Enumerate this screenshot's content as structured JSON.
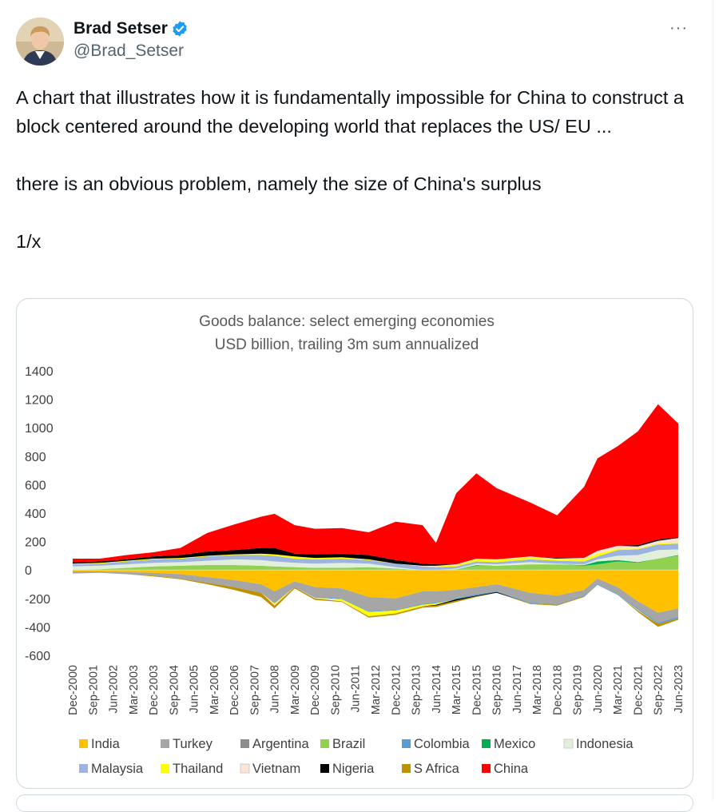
{
  "author": {
    "name": "Brad Setser",
    "handle": "@Brad_Setser",
    "verified_badge_color": "#1d9bf0",
    "avatar_icon": "person-photo"
  },
  "menu": {
    "more_label": "···"
  },
  "tweet": {
    "paragraphs": [
      "A chart that illustrates how it is fundamentally impossible for China to construct a block centered around the developing world that replaces the US/ EU ...",
      "there is an obvious problem, namely the size of China's surplus",
      "1/x"
    ]
  },
  "chart_data": {
    "type": "area",
    "stacked": true,
    "title": "Goods balance: select emerging economies",
    "subtitle": "USD billion, trailing 3m sum annualized",
    "xlabel": "",
    "ylabel": "",
    "ylim": [
      -600,
      1400
    ],
    "yticks": [
      1400,
      1200,
      1000,
      800,
      600,
      400,
      200,
      0,
      -200,
      -400,
      -600
    ],
    "xtick_labels": [
      "Dec-2000",
      "Sep-2001",
      "Jun-2002",
      "Mar-2003",
      "Dec-2003",
      "Sep-2004",
      "Jun-2005",
      "Mar-2006",
      "Dec-2006",
      "Sep-2007",
      "Jun-2008",
      "Mar-2009",
      "Dec-2009",
      "Sep-2010",
      "Jun-2011",
      "Mar-2012",
      "Dec-2012",
      "Sep-2013",
      "Jun-2014",
      "Mar-2015",
      "Dec-2015",
      "Sep-2016",
      "Jun-2017",
      "Mar-2018",
      "Dec-2018",
      "Sep-2019",
      "Jun-2020",
      "Mar-2021",
      "Dec-2021",
      "Sep-2022",
      "Jun-2023"
    ],
    "legend_position": "bottom",
    "legend": [
      {
        "name": "India",
        "color": "#FFC000"
      },
      {
        "name": "Turkey",
        "color": "#A6A6A6"
      },
      {
        "name": "Argentina",
        "color": "#8C8C8C"
      },
      {
        "name": "Brazil",
        "color": "#92D050"
      },
      {
        "name": "Colombia",
        "color": "#5B9BD5"
      },
      {
        "name": "Mexico",
        "color": "#00B050"
      },
      {
        "name": "Indonesia",
        "color": "#E2EFDA"
      },
      {
        "name": "Malaysia",
        "color": "#9DB3E0"
      },
      {
        "name": "Thailand",
        "color": "#FFFF00"
      },
      {
        "name": "Vietnam",
        "color": "#FCE4D6"
      },
      {
        "name": "Nigeria",
        "color": "#000000"
      },
      {
        "name": "S Africa",
        "color": "#BF9000"
      },
      {
        "name": "China",
        "color": "#FF0000"
      }
    ],
    "positive_stack": {
      "x": [
        "Dec-2000",
        "Dec-2001",
        "Dec-2002",
        "Dec-2003",
        "Dec-2004",
        "Dec-2005",
        "Dec-2006",
        "Dec-2007",
        "Jun-2008",
        "Mar-2009",
        "Dec-2009",
        "Dec-2010",
        "Dec-2011",
        "Dec-2012",
        "Dec-2013",
        "Jun-2014",
        "Mar-2015",
        "Dec-2015",
        "Sep-2016",
        "Dec-2017",
        "Dec-2018",
        "Dec-2019",
        "Jun-2020",
        "Mar-2021",
        "Dec-2021",
        "Sep-2022",
        "Jun-2023"
      ],
      "series": [
        {
          "name": "Brazil",
          "values": [
            0,
            5,
            15,
            25,
            30,
            35,
            35,
            30,
            25,
            20,
            15,
            15,
            20,
            10,
            0,
            0,
            5,
            30,
            30,
            40,
            40,
            30,
            40,
            60,
            50,
            80,
            100
          ]
        },
        {
          "name": "Mexico",
          "values": [
            0,
            0,
            0,
            0,
            0,
            0,
            0,
            0,
            0,
            0,
            0,
            0,
            0,
            0,
            0,
            0,
            0,
            5,
            0,
            0,
            0,
            5,
            20,
            10,
            5,
            0,
            5
          ]
        },
        {
          "name": "Indonesia",
          "values": [
            25,
            25,
            25,
            25,
            25,
            30,
            40,
            40,
            35,
            30,
            30,
            35,
            25,
            10,
            0,
            0,
            5,
            10,
            10,
            15,
            5,
            5,
            15,
            30,
            50,
            60,
            40
          ]
        },
        {
          "name": "Malaysia",
          "values": [
            15,
            15,
            20,
            25,
            25,
            30,
            30,
            35,
            40,
            30,
            30,
            30,
            25,
            25,
            25,
            20,
            15,
            15,
            15,
            20,
            20,
            20,
            20,
            40,
            40,
            40,
            40
          ]
        },
        {
          "name": "Thailand",
          "values": [
            5,
            5,
            5,
            5,
            5,
            5,
            5,
            10,
            10,
            15,
            10,
            10,
            5,
            0,
            0,
            5,
            10,
            15,
            15,
            15,
            10,
            15,
            20,
            10,
            5,
            5,
            10
          ]
        },
        {
          "name": "Vietnam",
          "values": [
            0,
            0,
            0,
            0,
            0,
            0,
            0,
            0,
            0,
            0,
            0,
            0,
            0,
            0,
            5,
            5,
            5,
            5,
            5,
            5,
            5,
            10,
            20,
            20,
            15,
            20,
            30
          ]
        },
        {
          "name": "Nigeria",
          "values": [
            10,
            10,
            10,
            15,
            20,
            30,
            30,
            40,
            45,
            20,
            25,
            25,
            30,
            25,
            15,
            10,
            0,
            0,
            0,
            0,
            5,
            0,
            0,
            0,
            10,
            10,
            5
          ]
        },
        {
          "name": "China",
          "values": [
            25,
            20,
            30,
            30,
            50,
            130,
            180,
            220,
            240,
            200,
            180,
            180,
            160,
            270,
            270,
            150,
            500,
            600,
            500,
            380,
            300,
            500,
            650,
            700,
            800,
            950,
            800
          ]
        }
      ]
    },
    "negative_stack": {
      "x": [
        "Dec-2000",
        "Dec-2001",
        "Dec-2002",
        "Dec-2003",
        "Dec-2004",
        "Dec-2005",
        "Dec-2006",
        "Dec-2007",
        "Jun-2008",
        "Mar-2009",
        "Dec-2009",
        "Dec-2010",
        "Dec-2011",
        "Dec-2012",
        "Dec-2013",
        "Jun-2014",
        "Mar-2015",
        "Dec-2015",
        "Sep-2016",
        "Dec-2017",
        "Dec-2018",
        "Dec-2019",
        "Jun-2020",
        "Mar-2021",
        "Dec-2021",
        "Sep-2022",
        "Jun-2023"
      ],
      "series": [
        {
          "name": "India",
          "values": [
            -10,
            -10,
            -15,
            -20,
            -30,
            -50,
            -70,
            -100,
            -150,
            -80,
            -120,
            -130,
            -190,
            -200,
            -150,
            -150,
            -140,
            -120,
            -100,
            -160,
            -180,
            -140,
            -60,
            -120,
            -220,
            -300,
            -270
          ]
        },
        {
          "name": "Turkey",
          "values": [
            -15,
            -10,
            -15,
            -20,
            -30,
            -40,
            -50,
            -60,
            -80,
            -40,
            -70,
            -70,
            -100,
            -80,
            -90,
            -80,
            -60,
            -50,
            -50,
            -70,
            -60,
            -40,
            -40,
            -50,
            -50,
            -70,
            -60
          ]
        },
        {
          "name": "Colombia",
          "values": [
            0,
            0,
            0,
            0,
            0,
            0,
            0,
            0,
            -5,
            0,
            -5,
            -5,
            -5,
            -5,
            -5,
            -5,
            -5,
            -10,
            -5,
            -5,
            -5,
            -5,
            -5,
            -5,
            -10,
            -10,
            -10
          ]
        },
        {
          "name": "Thailand",
          "values": [
            0,
            0,
            0,
            0,
            0,
            0,
            0,
            0,
            -10,
            0,
            0,
            -10,
            -30,
            -20,
            -10,
            -10,
            0,
            0,
            0,
            0,
            0,
            0,
            0,
            0,
            0,
            0,
            0
          ]
        },
        {
          "name": "Vietnam",
          "values": [
            0,
            0,
            0,
            0,
            0,
            0,
            0,
            0,
            -5,
            0,
            -5,
            -5,
            0,
            0,
            0,
            0,
            0,
            0,
            0,
            0,
            0,
            0,
            0,
            0,
            -5,
            0,
            0
          ]
        },
        {
          "name": "Nigeria",
          "values": [
            0,
            0,
            0,
            0,
            0,
            0,
            0,
            0,
            0,
            0,
            0,
            0,
            0,
            0,
            0,
            -5,
            -10,
            -5,
            -5,
            0,
            0,
            0,
            0,
            0,
            0,
            0,
            0
          ]
        },
        {
          "name": "S Africa",
          "values": [
            0,
            0,
            0,
            -5,
            -5,
            -10,
            -20,
            -30,
            -20,
            -10,
            -10,
            -5,
            -10,
            -10,
            -10,
            -10,
            -10,
            -5,
            0,
            -5,
            -5,
            -5,
            0,
            0,
            -10,
            -20,
            -10
          ]
        }
      ]
    }
  }
}
